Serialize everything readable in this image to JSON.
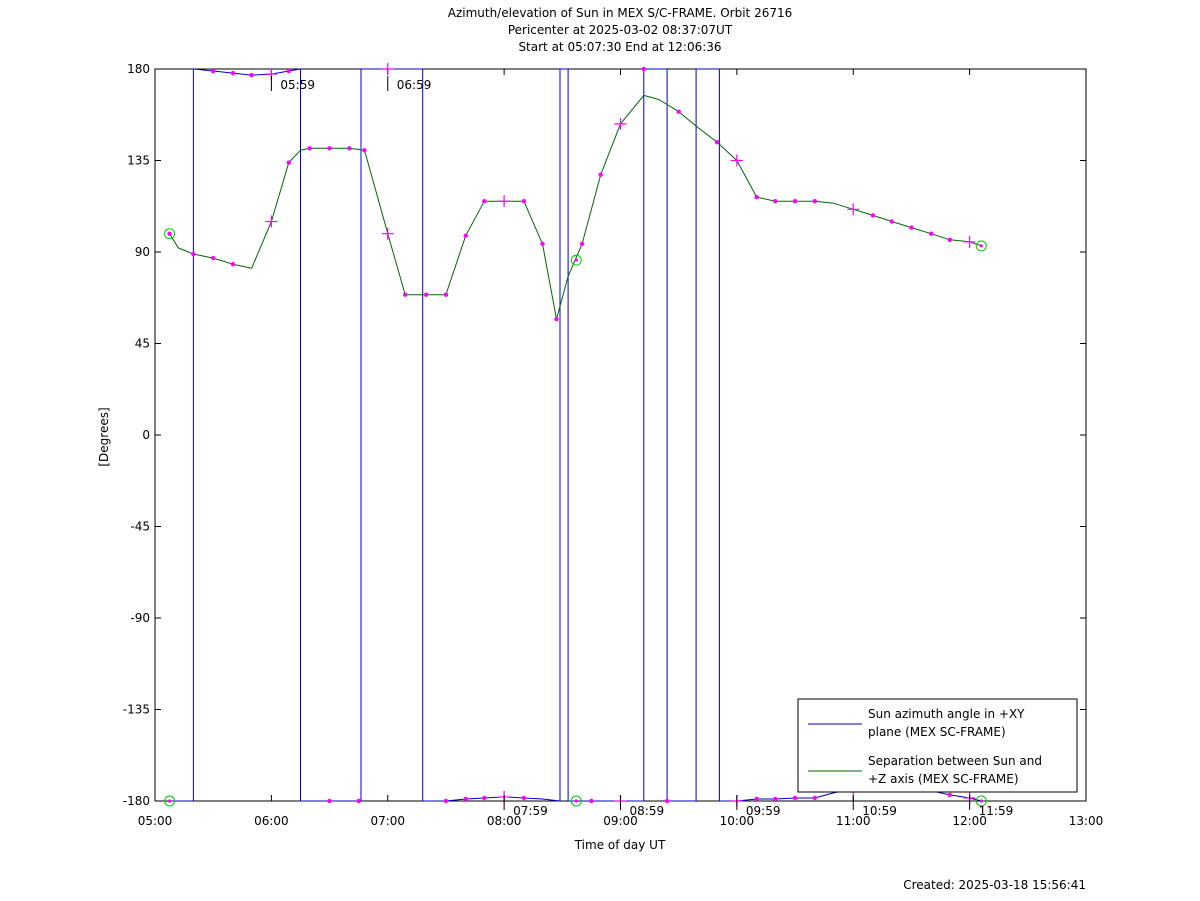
{
  "chart_data": {
    "type": "line",
    "title": [
      "Azimuth/elevation of Sun in MEX S/C-FRAME.  Orbit 26716",
      "Pericenter at 2025-03-02 08:37:07UT",
      "Start at 05:07:30 End at 12:06:36"
    ],
    "xlabel": "Time of day UT",
    "ylabel": "[Degrees]",
    "xlim": [
      5.0,
      13.0
    ],
    "ylim": [
      -180,
      180
    ],
    "x_ticks": [
      "05:00",
      "06:00",
      "07:00",
      "08:00",
      "09:00",
      "10:00",
      "11:00",
      "12:00",
      "13:00"
    ],
    "y_ticks": [
      "180",
      "135",
      "90",
      "45",
      "0",
      "-45",
      "-90",
      "-135",
      "-180"
    ],
    "legend": {
      "placement": "bottom-right",
      "entries": [
        {
          "label_lines": [
            "Sun azimuth angle in +XY",
            "plane (MEX SC-FRAME)"
          ],
          "color": "#0000cc"
        },
        {
          "label_lines": [
            "Separation between Sun and",
            "+Z axis (MEX SC-FRAME)"
          ],
          "color": "#006600"
        }
      ]
    },
    "series": [
      {
        "name": "Sun azimuth angle in +XY plane (MEX SC-FRAME)",
        "color": "#0000cc",
        "points": [
          [
            5.125,
            -180
          ],
          [
            5.33,
            -180
          ],
          [
            5.33,
            180
          ],
          [
            5.5,
            179
          ],
          [
            5.67,
            178
          ],
          [
            5.83,
            177
          ],
          [
            6.0,
            177.5
          ],
          [
            6.15,
            179
          ],
          [
            6.25,
            180
          ],
          [
            6.25,
            -180
          ],
          [
            6.5,
            -180
          ],
          [
            6.75,
            -180
          ],
          [
            6.77,
            -180
          ],
          [
            6.77,
            180
          ],
          [
            7.0,
            180
          ],
          [
            7.2,
            180
          ],
          [
            7.3,
            180
          ],
          [
            7.3,
            -180
          ],
          [
            7.5,
            -180
          ],
          [
            7.67,
            -179
          ],
          [
            7.83,
            -178.5
          ],
          [
            8.0,
            -178
          ],
          [
            8.17,
            -178.5
          ],
          [
            8.33,
            -179
          ],
          [
            8.48,
            -180
          ],
          [
            8.48,
            180
          ],
          [
            8.55,
            180
          ],
          [
            8.55,
            -180
          ],
          [
            8.75,
            -180
          ],
          [
            9.0,
            -180
          ],
          [
            9.2,
            -180
          ],
          [
            9.2,
            180
          ],
          [
            9.4,
            180
          ],
          [
            9.4,
            -180
          ],
          [
            9.55,
            -180
          ],
          [
            9.65,
            -180
          ],
          [
            9.65,
            180
          ],
          [
            9.85,
            180
          ],
          [
            9.85,
            -180
          ],
          [
            10.0,
            -180
          ],
          [
            10.17,
            -179
          ],
          [
            10.33,
            -179
          ],
          [
            10.5,
            -178.5
          ],
          [
            10.67,
            -178.5
          ],
          [
            10.83,
            -176
          ],
          [
            11.0,
            -174
          ],
          [
            11.17,
            -172
          ],
          [
            11.33,
            -172
          ],
          [
            11.5,
            -172.5
          ],
          [
            11.67,
            -175
          ],
          [
            11.83,
            -177
          ],
          [
            12.0,
            -178.5
          ],
          [
            12.1,
            -180
          ]
        ]
      },
      {
        "name": "Separation between Sun and +Z axis (MEX SC-FRAME)",
        "color": "#006600",
        "points": [
          [
            5.125,
            99
          ],
          [
            5.2,
            92
          ],
          [
            5.33,
            89
          ],
          [
            5.5,
            87
          ],
          [
            5.67,
            84
          ],
          [
            5.83,
            82
          ],
          [
            6.0,
            105
          ],
          [
            6.15,
            134
          ],
          [
            6.25,
            140
          ],
          [
            6.33,
            141
          ],
          [
            6.5,
            141
          ],
          [
            6.67,
            141
          ],
          [
            6.8,
            140
          ],
          [
            7.0,
            99
          ],
          [
            7.15,
            69
          ],
          [
            7.33,
            69
          ],
          [
            7.5,
            69
          ],
          [
            7.67,
            98
          ],
          [
            7.83,
            115
          ],
          [
            8.0,
            115
          ],
          [
            8.17,
            115
          ],
          [
            8.33,
            94
          ],
          [
            8.45,
            57
          ],
          [
            8.55,
            78
          ],
          [
            8.67,
            94
          ],
          [
            8.83,
            128
          ],
          [
            9.0,
            153
          ],
          [
            9.2,
            167
          ],
          [
            9.33,
            165
          ],
          [
            9.5,
            159
          ],
          [
            9.67,
            151
          ],
          [
            9.83,
            144
          ],
          [
            10.0,
            135
          ],
          [
            10.17,
            117
          ],
          [
            10.33,
            115
          ],
          [
            10.5,
            115
          ],
          [
            10.67,
            115
          ],
          [
            10.83,
            114
          ],
          [
            11.0,
            111
          ],
          [
            11.17,
            108
          ],
          [
            11.33,
            105
          ],
          [
            11.5,
            102
          ],
          [
            11.67,
            99
          ],
          [
            11.83,
            96
          ],
          [
            12.0,
            95
          ],
          [
            12.1,
            93
          ]
        ]
      }
    ],
    "markers": {
      "dots": [
        [
          5.125,
          99
        ],
        [
          5.33,
          89
        ],
        [
          5.5,
          87
        ],
        [
          5.67,
          84
        ],
        [
          6.15,
          134
        ],
        [
          6.33,
          141
        ],
        [
          6.5,
          141
        ],
        [
          6.67,
          141
        ],
        [
          6.8,
          140
        ],
        [
          7.15,
          69
        ],
        [
          7.33,
          69
        ],
        [
          7.5,
          69
        ],
        [
          7.67,
          98
        ],
        [
          7.83,
          115
        ],
        [
          8.17,
          115
        ],
        [
          8.33,
          94
        ],
        [
          8.45,
          57
        ],
        [
          8.67,
          94
        ],
        [
          8.83,
          128
        ],
        [
          9.5,
          159
        ],
        [
          9.83,
          144
        ],
        [
          10.17,
          117
        ],
        [
          10.33,
          115
        ],
        [
          10.5,
          115
        ],
        [
          10.67,
          115
        ],
        [
          11.17,
          108
        ],
        [
          11.33,
          105
        ],
        [
          11.5,
          102
        ],
        [
          11.67,
          99
        ],
        [
          11.83,
          96
        ],
        [
          5.5,
          179
        ],
        [
          5.67,
          178
        ],
        [
          5.83,
          177
        ],
        [
          6.15,
          179
        ],
        [
          6.5,
          -180
        ],
        [
          6.75,
          -180
        ],
        [
          7.5,
          -180
        ],
        [
          7.67,
          -179
        ],
        [
          7.83,
          -178.5
        ],
        [
          8.17,
          -178.5
        ],
        [
          8.75,
          -180
        ],
        [
          9.2,
          180
        ],
        [
          9.4,
          -180
        ],
        [
          10.17,
          -179
        ],
        [
          10.33,
          -179
        ],
        [
          10.5,
          -178.5
        ],
        [
          10.67,
          -178.5
        ],
        [
          11.83,
          -177
        ]
      ],
      "crosses": [
        [
          6.0,
          177.5
        ],
        [
          6.0,
          105
        ],
        [
          7.0,
          99
        ],
        [
          7.0,
          180
        ],
        [
          8.0,
          115
        ],
        [
          8.0,
          -178
        ],
        [
          9.0,
          153
        ],
        [
          9.0,
          -180
        ],
        [
          10.0,
          135
        ],
        [
          10.0,
          -180
        ],
        [
          11.0,
          111
        ],
        [
          11.0,
          -174
        ],
        [
          12.0,
          95
        ],
        [
          12.0,
          -178.5
        ]
      ],
      "circles": [
        [
          5.125,
          99
        ],
        [
          5.125,
          -180
        ],
        [
          8.62,
          86
        ],
        [
          8.62,
          -180
        ],
        [
          12.1,
          93
        ],
        [
          12.1,
          -180
        ]
      ]
    },
    "time_annotations": [
      {
        "x": 6.0,
        "edge": "top",
        "label": "05:59"
      },
      {
        "x": 7.0,
        "edge": "top",
        "label": "06:59"
      },
      {
        "x": 8.0,
        "edge": "bottom",
        "label": "07:59"
      },
      {
        "x": 9.0,
        "edge": "bottom",
        "label": "08:59"
      },
      {
        "x": 10.0,
        "edge": "bottom",
        "label": "09:59"
      },
      {
        "x": 11.0,
        "edge": "bottom",
        "label": "10:59"
      },
      {
        "x": 12.0,
        "edge": "bottom",
        "label": "11:59"
      }
    ],
    "footer": "Created: 2025-03-18 15:56:41"
  }
}
